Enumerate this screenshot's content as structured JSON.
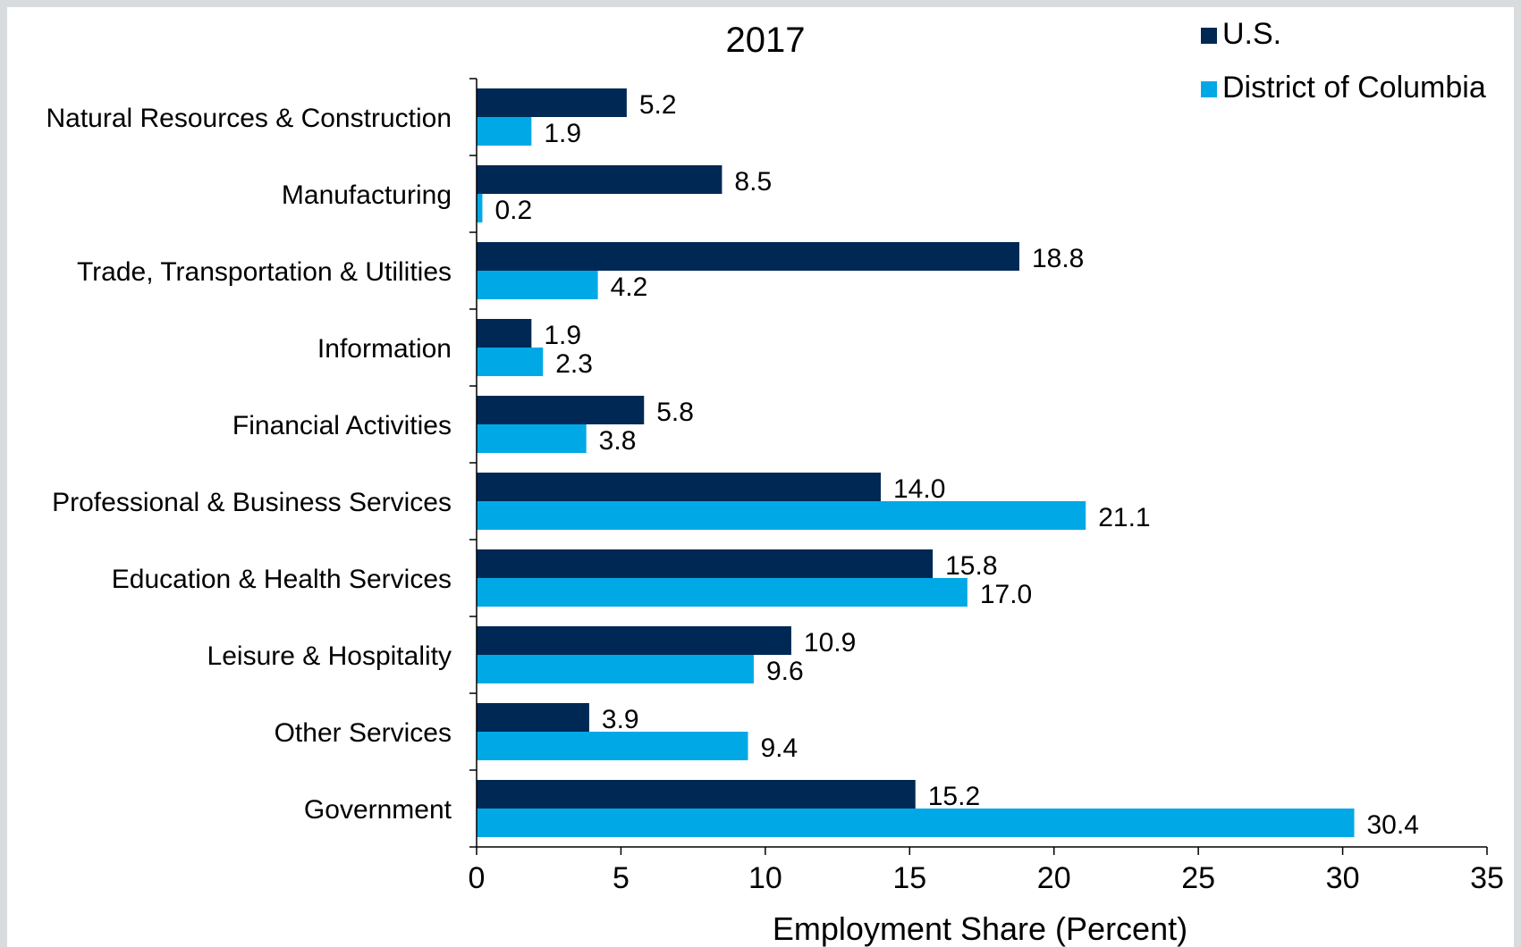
{
  "chart_data": {
    "type": "bar",
    "orientation": "horizontal",
    "title": "2017",
    "xlabel": "Employment Share (Percent)",
    "ylabel": "",
    "xlim": [
      0,
      35
    ],
    "xticks": [
      0,
      5,
      10,
      15,
      20,
      25,
      30,
      35
    ],
    "grid": false,
    "legend_position": "top-right",
    "categories": [
      "Natural Resources & Construction",
      "Manufacturing",
      "Trade, Transportation & Utilities",
      "Information",
      "Financial Activities",
      "Professional & Business Services",
      "Education & Health Services",
      "Leisure & Hospitality",
      "Other Services",
      "Government"
    ],
    "series": [
      {
        "name": "U.S.",
        "color": "#002855",
        "values": [
          5.2,
          8.5,
          18.8,
          1.9,
          5.8,
          14.0,
          15.8,
          10.9,
          3.9,
          15.2
        ],
        "labels": [
          "5.2",
          "8.5",
          "18.8",
          "1.9",
          "5.8",
          "14.0",
          "15.8",
          "10.9",
          "3.9",
          "15.2"
        ]
      },
      {
        "name": "District of Columbia",
        "color": "#00a9e6",
        "values": [
          1.9,
          0.2,
          4.2,
          2.3,
          3.8,
          21.1,
          17.0,
          9.6,
          9.4,
          30.4
        ],
        "labels": [
          "1.9",
          "0.2",
          "4.2",
          "2.3",
          "3.8",
          "21.1",
          "17.0",
          "9.6",
          "9.4",
          "30.4"
        ]
      }
    ]
  }
}
